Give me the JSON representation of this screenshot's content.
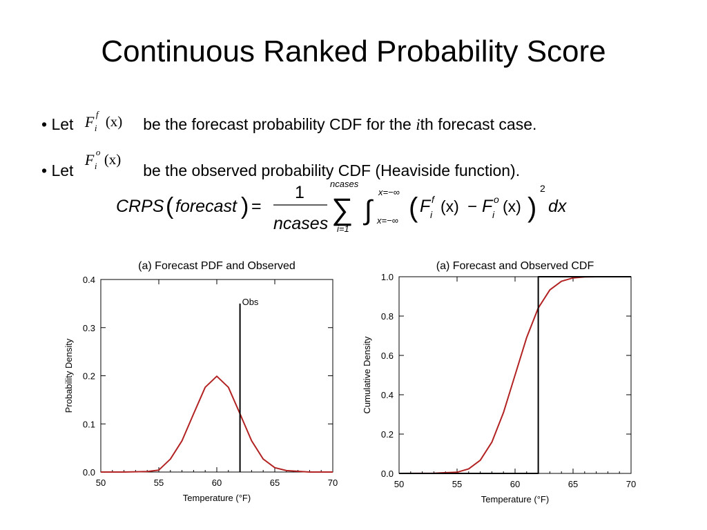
{
  "slide": {
    "title": "Continuous Ranked Probability Score",
    "bullet1": {
      "prefix": "• Let",
      "text": "be the forecast probability CDF for the ",
      "italic": "i",
      "suffix": "th forecast case."
    },
    "bullet2": {
      "prefix": "• Let",
      "text": "be the observed probability CDF (Heaviside function)."
    },
    "math": {
      "F": "F",
      "i": "i",
      "f": "f",
      "o": "o",
      "x": "(x)",
      "crps": "CRPS",
      "forecast": "forecast",
      "eq": "=",
      "one": "1",
      "ncases": "ncases",
      "sum_top": "ncases",
      "sum_bot": "i=1",
      "sigma": "∑",
      "int": "∫",
      "int_top": "x=−∞",
      "int_bot": "x=−∞",
      "minus": "−",
      "power": "2",
      "dx": "dx",
      "lp": "(",
      "rp": ")"
    }
  },
  "chart_data": [
    {
      "type": "line",
      "title": "(a) Forecast PDF and Observed",
      "xlabel": "Temperature (°F)",
      "ylabel": "Probability Density",
      "xlim": [
        50,
        70
      ],
      "ylim": [
        0,
        0.4
      ],
      "xticks": [
        "50",
        "55",
        "60",
        "65",
        "70"
      ],
      "yticks": [
        "0.0",
        "0.1",
        "0.2",
        "0.3",
        "0.4"
      ],
      "series": [
        {
          "color": "#b22222",
          "x": [
            50,
            52,
            54,
            55,
            56,
            57,
            58,
            59,
            60,
            61,
            62,
            63,
            64,
            65,
            66,
            68,
            70
          ],
          "y": [
            0.0,
            0.0,
            0.001,
            0.004,
            0.027,
            0.065,
            0.121,
            0.176,
            0.199,
            0.176,
            0.121,
            0.065,
            0.027,
            0.009,
            0.003,
            0.0,
            0.0
          ]
        }
      ],
      "annotations": [
        {
          "type": "vline",
          "x": 62,
          "y_top": 0.35,
          "label": "Obs",
          "color": "#000000"
        }
      ]
    },
    {
      "type": "line",
      "title": "(a) Forecast and Observed CDF",
      "xlabel": "Temperature (°F)",
      "ylabel": "Cumulative Density",
      "xlim": [
        50,
        70
      ],
      "ylim": [
        0,
        1.0
      ],
      "xticks": [
        "50",
        "55",
        "60",
        "65",
        "70"
      ],
      "yticks": [
        "0.0",
        "0.2",
        "0.4",
        "0.6",
        "0.8",
        "1.0"
      ],
      "series": [
        {
          "color": "#b22222",
          "x": [
            50,
            53,
            55,
            56,
            57,
            58,
            59,
            60,
            61,
            62,
            63,
            64,
            65,
            66,
            67,
            70
          ],
          "y": [
            0.0,
            0.001,
            0.006,
            0.023,
            0.067,
            0.159,
            0.309,
            0.5,
            0.691,
            0.841,
            0.933,
            0.977,
            0.994,
            0.999,
            1.0,
            1.0
          ]
        },
        {
          "color": "#000000",
          "x": [
            50,
            62,
            62,
            70
          ],
          "y": [
            0,
            0,
            1,
            1
          ]
        }
      ]
    }
  ]
}
